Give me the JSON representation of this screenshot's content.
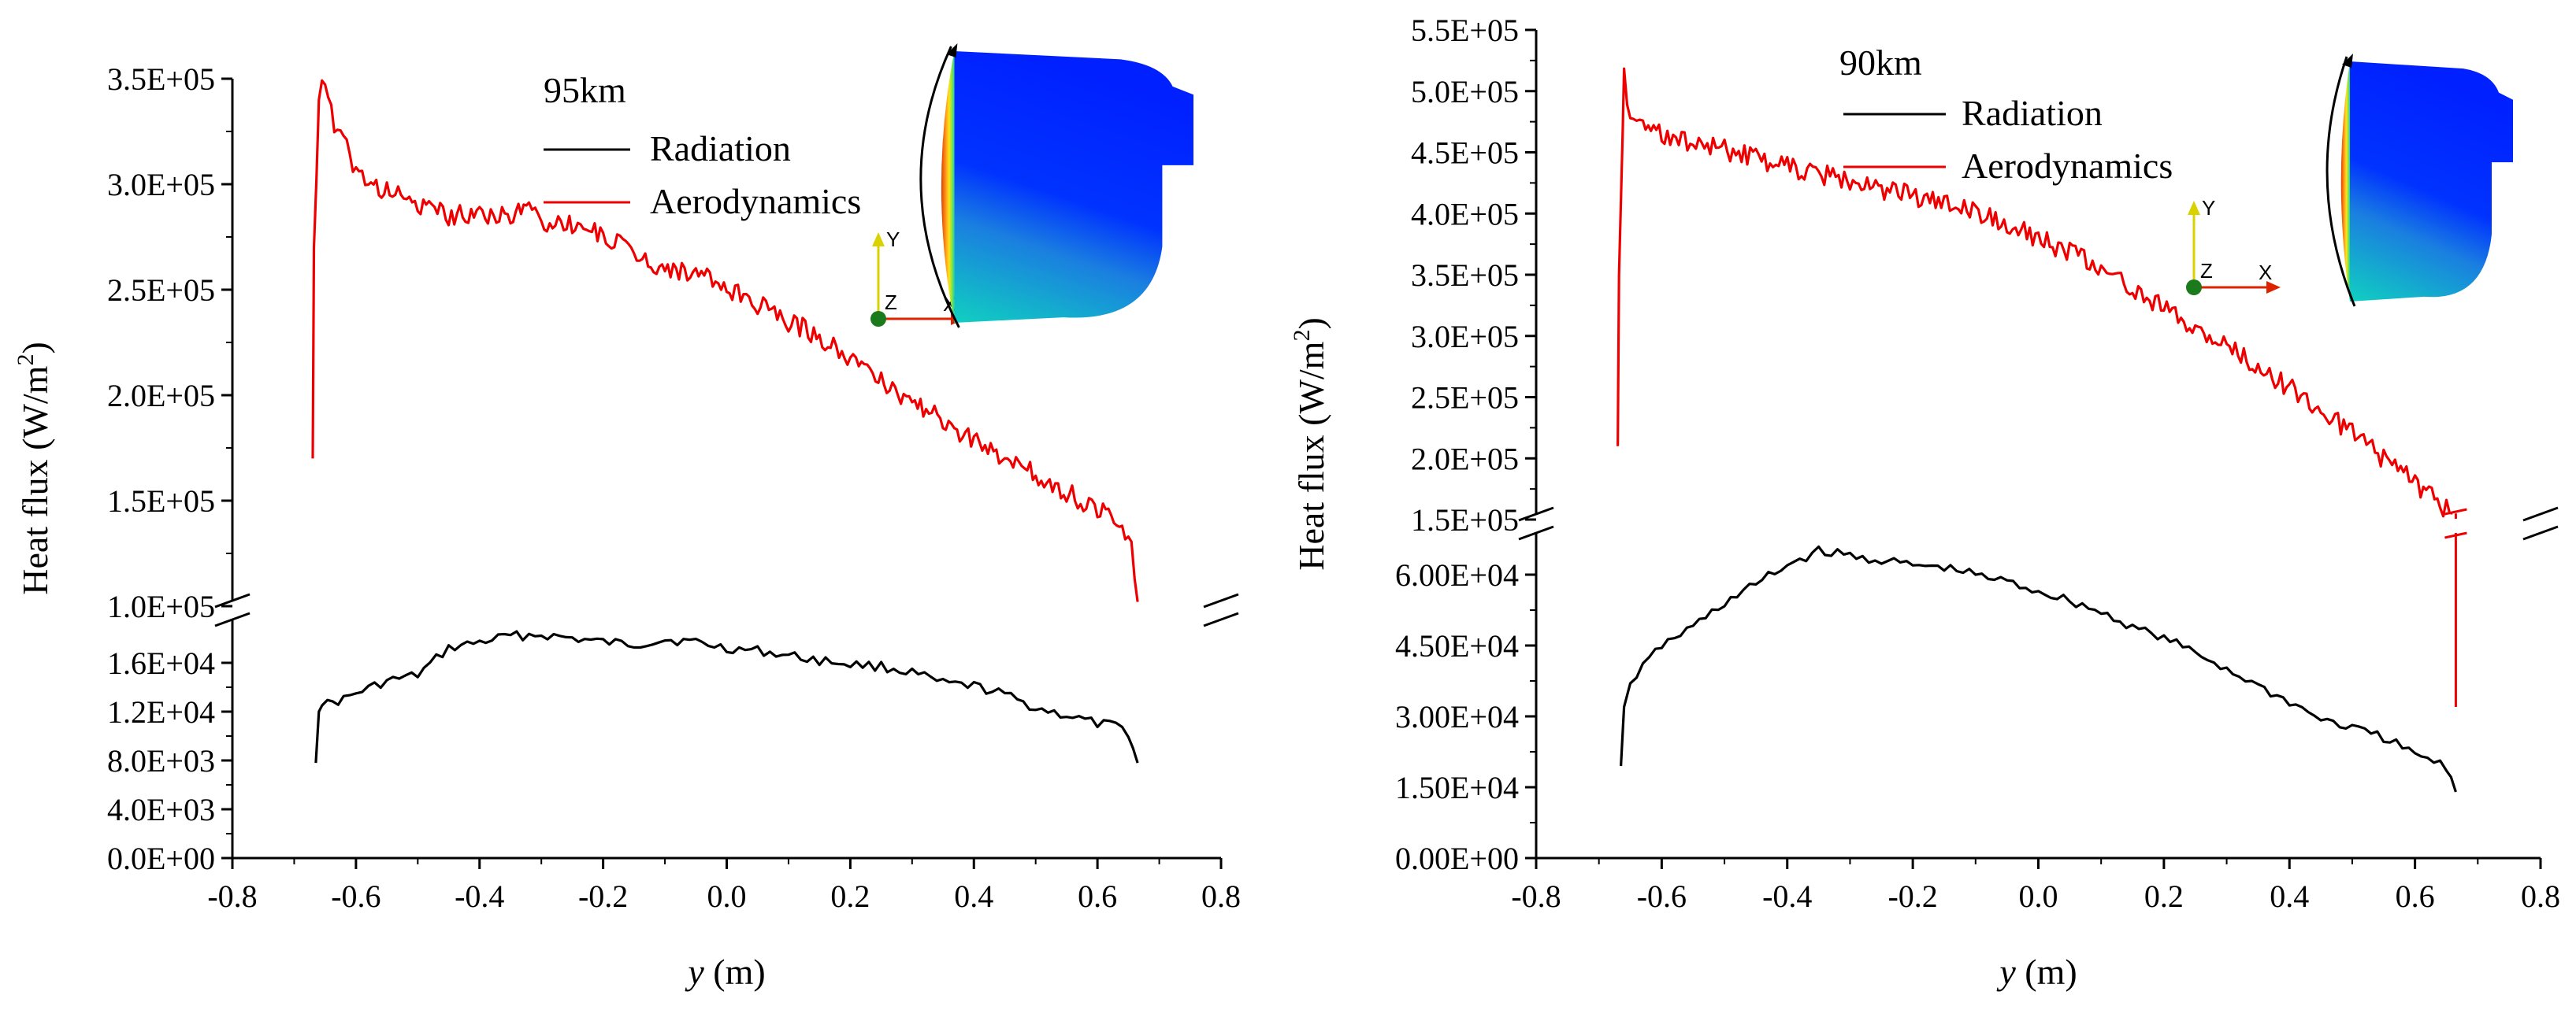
{
  "chart_data": [
    {
      "type": "line",
      "annotation": "95km",
      "xlabel_var": "y",
      "xlabel_unit": " (m)",
      "ylabel_text": "Heat flux (W/m",
      "ylabel_sup": "2",
      "ylabel_close": ")",
      "xlim": [
        -0.8,
        0.8
      ],
      "x_ticks": [
        "-0.8",
        "-0.6",
        "-0.4",
        "-0.2",
        "0.0",
        "0.2",
        "0.4",
        "0.6",
        "0.8"
      ],
      "broken_axis": true,
      "upper_ylim": [
        100000,
        350000
      ],
      "upper_y_ticks": [
        "1.0E+05",
        "1.5E+05",
        "2.0E+05",
        "2.5E+05",
        "3.0E+05",
        "3.5E+05"
      ],
      "lower_ylim": [
        0,
        20000
      ],
      "lower_y_ticks": [
        "0.0E+00",
        "4.0E+03",
        "8.0E+03",
        "1.2E+04",
        "1.6E+04"
      ],
      "legend_placement": "top-center",
      "series": [
        {
          "name": "Radiation",
          "color": "#000000",
          "axis": "lower",
          "x": [
            -0.665,
            -0.66,
            -0.655,
            -0.62,
            -0.6,
            -0.55,
            -0.5,
            -0.45,
            -0.4,
            -0.35,
            -0.3,
            -0.25,
            -0.2,
            -0.15,
            -0.1,
            -0.05,
            0.0,
            0.05,
            0.1,
            0.15,
            0.2,
            0.25,
            0.3,
            0.35,
            0.4,
            0.45,
            0.5,
            0.55,
            0.6,
            0.63,
            0.65,
            0.665
          ],
          "y": [
            7800,
            12000,
            12500,
            13000,
            13500,
            14500,
            15000,
            17200,
            17700,
            18200,
            18300,
            18000,
            17700,
            17500,
            17900,
            17700,
            17200,
            17000,
            16600,
            16200,
            15900,
            15700,
            15200,
            14300,
            14100,
            13400,
            12300,
            11700,
            11000,
            10800,
            10300,
            7800
          ]
        },
        {
          "name": "Aerodynamics",
          "color": "#ee0000",
          "axis": "upper",
          "x": [
            -0.67,
            -0.668,
            -0.66,
            -0.655,
            -0.645,
            -0.635,
            -0.62,
            -0.6,
            -0.58,
            -0.55,
            -0.5,
            -0.45,
            -0.4,
            -0.35,
            -0.32,
            -0.3,
            -0.25,
            -0.2,
            -0.15,
            -0.1,
            -0.05,
            0.0,
            0.05,
            0.1,
            0.15,
            0.2,
            0.25,
            0.3,
            0.35,
            0.4,
            0.45,
            0.5,
            0.55,
            0.6,
            0.64,
            0.655,
            0.66,
            0.665
          ],
          "y": [
            170000,
            270000,
            340000,
            353000,
            342000,
            325000,
            320000,
            307000,
            300000,
            297000,
            290000,
            285000,
            287000,
            284000,
            290000,
            282000,
            281000,
            276000,
            267000,
            260000,
            258000,
            250000,
            243000,
            235000,
            228000,
            218000,
            207000,
            197000,
            188000,
            178000,
            170000,
            163000,
            154000,
            146000,
            138000,
            128000,
            118000,
            102000
          ]
        }
      ]
    },
    {
      "type": "line",
      "annotation": "90km",
      "xlabel_var": "y",
      "xlabel_unit": " (m)",
      "ylabel_text": "Heat flux (W/m",
      "ylabel_sup": "2",
      "ylabel_close": ")",
      "xlim": [
        -0.8,
        0.8
      ],
      "x_ticks": [
        "-0.8",
        "-0.6",
        "-0.4",
        "-0.2",
        "0.0",
        "0.2",
        "0.4",
        "0.6",
        "0.8"
      ],
      "broken_axis": true,
      "upper_ylim": [
        150000,
        550000
      ],
      "upper_y_ticks": [
        "1.5E+05",
        "2.0E+05",
        "2.5E+05",
        "3.0E+05",
        "3.5E+05",
        "4.0E+05",
        "4.5E+05",
        "5.0E+05",
        "5.5E+05"
      ],
      "lower_ylim": [
        0,
        70000
      ],
      "lower_y_ticks": [
        "0.00E+00",
        "1.50E+04",
        "3.00E+04",
        "4.50E+04",
        "6.00E+04"
      ],
      "legend_placement": "top-center",
      "series": [
        {
          "name": "Radiation",
          "color": "#000000",
          "axis": "lower",
          "x": [
            -0.665,
            -0.66,
            -0.65,
            -0.62,
            -0.6,
            -0.55,
            -0.5,
            -0.45,
            -0.4,
            -0.35,
            -0.3,
            -0.25,
            -0.2,
            -0.15,
            -0.1,
            -0.05,
            0.0,
            0.05,
            0.1,
            0.15,
            0.2,
            0.25,
            0.3,
            0.35,
            0.4,
            0.45,
            0.5,
            0.55,
            0.6,
            0.63,
            0.65,
            0.665
          ],
          "y": [
            19500,
            32000,
            37000,
            42000,
            45000,
            49000,
            54000,
            58000,
            62000,
            65000,
            64000,
            63000,
            62000,
            61500,
            60000,
            58500,
            56500,
            54500,
            52000,
            49000,
            46500,
            43500,
            40000,
            36500,
            33000,
            29500,
            27500,
            25500,
            22000,
            20500,
            19000,
            14000
          ]
        },
        {
          "name": "Aerodynamics",
          "color": "#ee0000",
          "axis": "upper",
          "x": [
            -0.67,
            -0.668,
            -0.662,
            -0.66,
            -0.655,
            -0.645,
            -0.63,
            -0.6,
            -0.55,
            -0.5,
            -0.45,
            -0.4,
            -0.35,
            -0.3,
            -0.25,
            -0.2,
            -0.15,
            -0.1,
            -0.05,
            0.0,
            0.05,
            0.1,
            0.15,
            0.2,
            0.25,
            0.3,
            0.35,
            0.4,
            0.45,
            0.5,
            0.55,
            0.6,
            0.64,
            0.66
          ],
          "y": [
            210000,
            350000,
            470000,
            515000,
            490000,
            478000,
            470000,
            465000,
            458000,
            452000,
            445000,
            438000,
            432000,
            427000,
            420000,
            415000,
            408000,
            400000,
            392000,
            380000,
            368000,
            355000,
            340000,
            322000,
            305000,
            292000,
            275000,
            258000,
            240000,
            220000,
            200000,
            180000,
            162000,
            155000
          ]
        }
      ]
    }
  ]
}
